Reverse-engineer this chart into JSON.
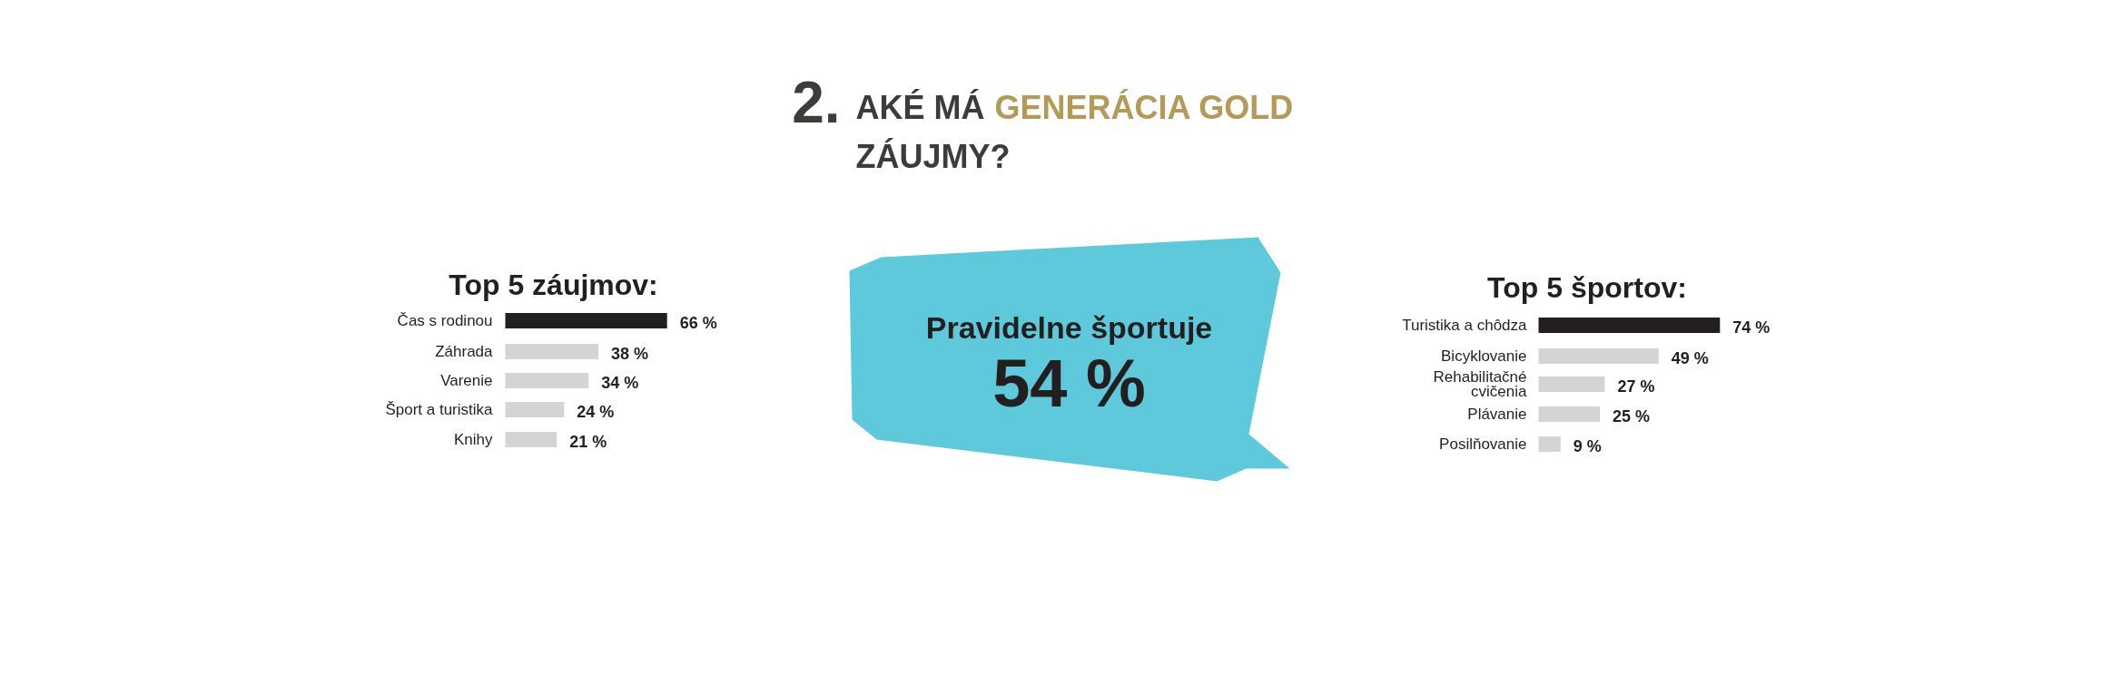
{
  "chart_data": [
    {
      "type": "other",
      "title": "2.",
      "annotations": [
        "AKÉ MÁ",
        "GENERÁCIA GOLD",
        "ZÁUJMY?"
      ],
      "colors": [
        "#3c3c3b",
        "#b49a57",
        "#3c3c3b"
      ]
    },
    {
      "type": "bar",
      "orientation": "horizontal",
      "title": "Top 5 záujmov:",
      "categories": [
        "Čas s rodinou",
        "Záhrada",
        "Varenie",
        "Šport a turistika",
        "Knihy"
      ],
      "values": [
        66,
        38,
        34,
        24,
        21
      ],
      "value_labels": [
        "66 %",
        "38 %",
        "34 %",
        "24 %",
        "21 %"
      ],
      "colors": [
        "#231f20",
        "#d4d4d6",
        "#d4d4d6",
        "#d4d4d6",
        "#d4d4d6"
      ]
    },
    {
      "type": "other",
      "title": "Pravidelne športuje",
      "annotations": [
        "54 %"
      ]
    },
    {
      "type": "bar",
      "orientation": "horizontal",
      "title": "Top 5 športov:",
      "categories": [
        "Turistika a chôdza",
        "Bicyklovanie",
        "Rehabilitačné cvičenia",
        "Plávanie",
        "Posilňovanie"
      ],
      "values": [
        74,
        49,
        27,
        25,
        9
      ],
      "value_labels": [
        "74 %",
        "49 %",
        "27 %",
        "25 %",
        "9 %"
      ],
      "colors": [
        "#231f20",
        "#d4d4d6",
        "#d4d4d6",
        "#d4d4d6",
        "#d4d4d6"
      ]
    }
  ]
}
